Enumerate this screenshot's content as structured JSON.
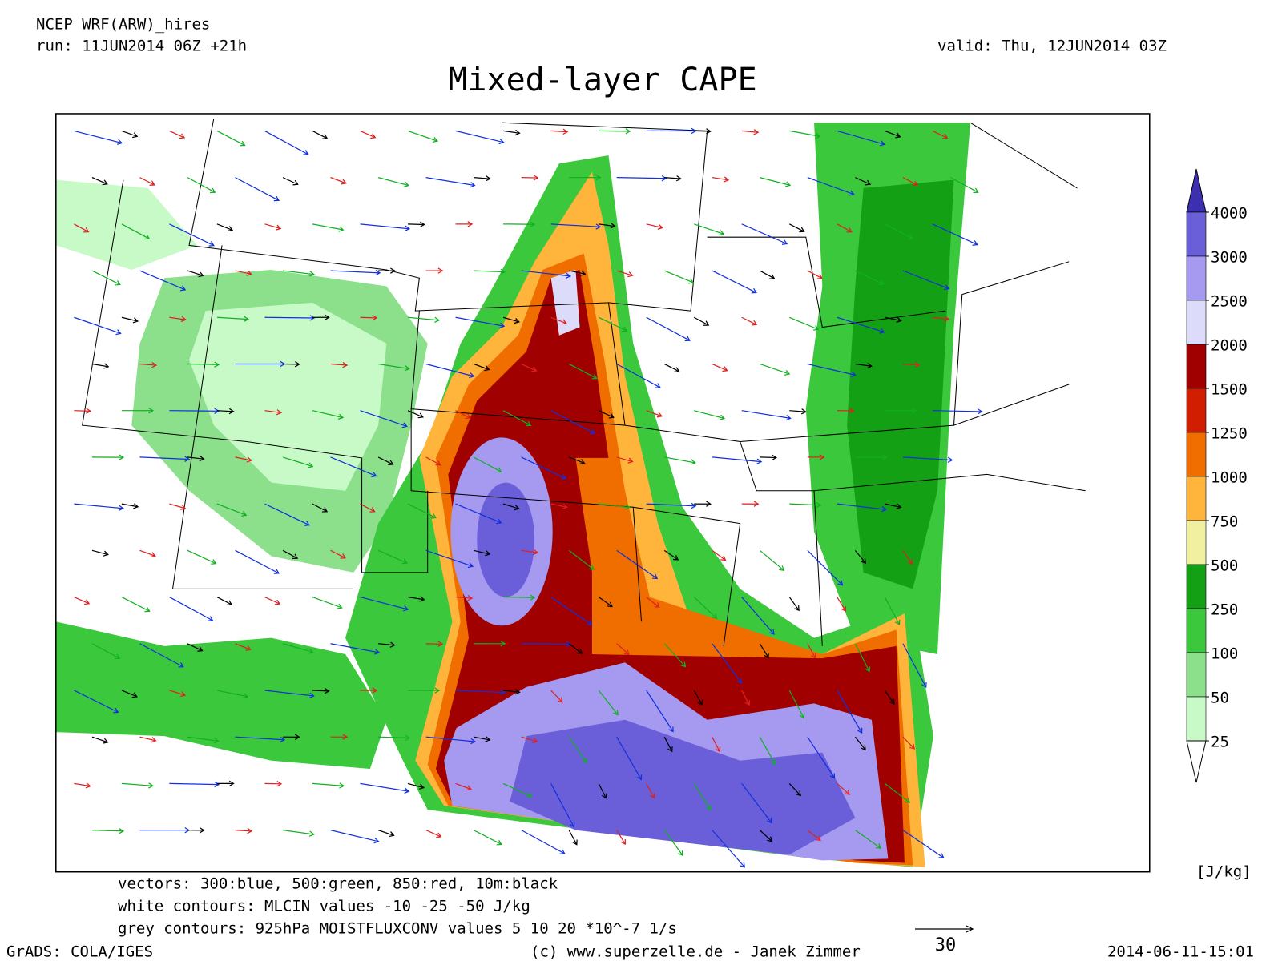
{
  "header": {
    "model": "NCEP WRF(ARW)_hires",
    "run": "run: 11JUN2014 06Z +21h",
    "valid": "valid: Thu, 12JUN2014 03Z"
  },
  "title": "Mixed-layer CAPE",
  "legend": {
    "labels": [
      4000,
      3000,
      2500,
      2000,
      1500,
      1250,
      1000,
      750,
      500,
      250,
      100,
      50,
      25
    ],
    "colors": [
      "#3c30b0",
      "#6a5fd8",
      "#a59af0",
      "#dcdcfa",
      "#a00000",
      "#d21e00",
      "#f06e00",
      "#ffb43c",
      "#f0f0a0",
      "#14a014",
      "#3cc83c",
      "#8ce08c",
      "#c8fac8",
      "#ffffff"
    ],
    "unit": "[J/kg]"
  },
  "notes": [
    "vectors: 300:blue, 500:green, 850:red, 10m:black",
    "white contours: MLCIN values -10 -25 -50 J/kg",
    "grey contours: 925hPa MOISTFLUXCONV values 5 10 20 *10^-7 1/s"
  ],
  "scale_label": "30",
  "footer": {
    "left": "GrADS: COLA/IGES",
    "center": "(c) www.superzelle.de - Janek Zimmer",
    "right": "2014-06-11-15:01"
  }
}
